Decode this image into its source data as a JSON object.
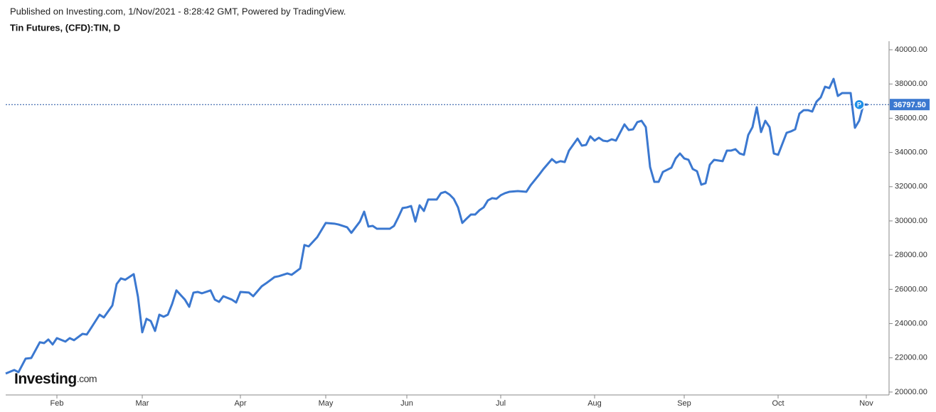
{
  "chart_data": {
    "type": "line",
    "header": "Published on Investing.com, 1/Nov/2021 - 8:28:42 GMT, Powered by TradingView.",
    "title": "Tin Futures, (CFD):TIN, D",
    "logo": {
      "brand": "Investing",
      "suffix": ".com"
    },
    "marker_label": "P",
    "price_label": {
      "value": 36797.5,
      "label": "36797.50"
    },
    "xlim": [
      0,
      621
    ],
    "xticks": [
      {
        "value": 36,
        "label": "Feb"
      },
      {
        "value": 96,
        "label": "Mar"
      },
      {
        "value": 165,
        "label": "Apr"
      },
      {
        "value": 225,
        "label": "May"
      },
      {
        "value": 282,
        "label": "Jun"
      },
      {
        "value": 348,
        "label": "Jul"
      },
      {
        "value": 414,
        "label": "Aug"
      },
      {
        "value": 477,
        "label": "Sep"
      },
      {
        "value": 543,
        "label": "Oct"
      },
      {
        "value": 605,
        "label": "Nov"
      }
    ],
    "ylim": [
      19830,
      40500
    ],
    "yticks": [
      {
        "value": 20000,
        "label": "20000.00"
      },
      {
        "value": 22000,
        "label": "22000.00"
      },
      {
        "value": 24000,
        "label": "24000.00"
      },
      {
        "value": 26000,
        "label": "26000.00"
      },
      {
        "value": 28000,
        "label": "28000.00"
      },
      {
        "value": 30000,
        "label": "30000.00"
      },
      {
        "value": 32000,
        "label": "32000.00"
      },
      {
        "value": 34000,
        "label": "34000.00"
      },
      {
        "value": 36000,
        "label": "36000.00"
      },
      {
        "value": 38000,
        "label": "38000.00"
      },
      {
        "value": 40000,
        "label": "40000.00"
      }
    ],
    "grid": false,
    "x": [
      0,
      6,
      9,
      14,
      18,
      24,
      27,
      30,
      33,
      36,
      42,
      45,
      48,
      54,
      57,
      60,
      66,
      69,
      75,
      78,
      81,
      84,
      90,
      93,
      96,
      99,
      102,
      105,
      108,
      111,
      114,
      117,
      120,
      126,
      129,
      132,
      135,
      138,
      144,
      147,
      150,
      153,
      159,
      162,
      165,
      171,
      174,
      180,
      183,
      189,
      192,
      198,
      201,
      207,
      210,
      213,
      219,
      225,
      231,
      234,
      240,
      243,
      249,
      252,
      255,
      258,
      261,
      270,
      273,
      276,
      279,
      282,
      285,
      288,
      291,
      294,
      297,
      303,
      306,
      309,
      312,
      315,
      318,
      321,
      324,
      327,
      330,
      333,
      336,
      339,
      342,
      345,
      348,
      351,
      354,
      360,
      366,
      369,
      375,
      378,
      384,
      387,
      390,
      393,
      396,
      402,
      405,
      408,
      411,
      414,
      417,
      420,
      423,
      426,
      429,
      435,
      438,
      441,
      444,
      447,
      450,
      453,
      456,
      459,
      462,
      468,
      471,
      474,
      477,
      480,
      483,
      486,
      489,
      492,
      495,
      498,
      504,
      507,
      510,
      513,
      516,
      519,
      522,
      525,
      528,
      531,
      534,
      537,
      540,
      543,
      549,
      552,
      555,
      558,
      561,
      564,
      567,
      570,
      573,
      576,
      579,
      582,
      585,
      588,
      594,
      597,
      600,
      603,
      606
    ],
    "series": [
      {
        "name": "TIN",
        "color": "#3b78d0",
        "values": [
          21080,
          21290,
          21160,
          21950,
          21990,
          22910,
          22860,
          23070,
          22780,
          23150,
          22950,
          23150,
          23030,
          23400,
          23360,
          23740,
          24520,
          24360,
          25060,
          26310,
          26640,
          26560,
          26890,
          25560,
          23490,
          24280,
          24150,
          23570,
          24520,
          24400,
          24520,
          25150,
          25940,
          25400,
          24980,
          25810,
          25850,
          25770,
          25940,
          25400,
          25270,
          25600,
          25400,
          25230,
          25850,
          25810,
          25600,
          26180,
          26350,
          26720,
          26770,
          26930,
          26850,
          27220,
          28590,
          28510,
          29050,
          29880,
          29840,
          29790,
          29630,
          29300,
          29960,
          30540,
          29670,
          29710,
          29540,
          29540,
          29710,
          30210,
          30750,
          30790,
          30870,
          29960,
          30910,
          30580,
          31250,
          31250,
          31620,
          31700,
          31540,
          31290,
          30790,
          29880,
          30130,
          30370,
          30370,
          30620,
          30790,
          31200,
          31330,
          31290,
          31500,
          31620,
          31700,
          31740,
          31700,
          32080,
          32700,
          33030,
          33610,
          33400,
          33490,
          33440,
          34110,
          34810,
          34400,
          34440,
          34940,
          34690,
          34860,
          34690,
          34650,
          34770,
          34690,
          35640,
          35310,
          35350,
          35770,
          35850,
          35480,
          33150,
          32280,
          32280,
          32860,
          33110,
          33650,
          33940,
          33650,
          33570,
          33030,
          32900,
          32120,
          32200,
          33280,
          33570,
          33490,
          34110,
          34110,
          34190,
          33940,
          33860,
          35020,
          35480,
          36640,
          35190,
          35850,
          35480,
          33940,
          33860,
          35150,
          35230,
          35350,
          36270,
          36470,
          36470,
          36390,
          36970,
          37220,
          37840,
          37760,
          38300,
          37300,
          37470,
          37470,
          35440,
          35850,
          36800,
          36797.5
        ]
      }
    ]
  }
}
